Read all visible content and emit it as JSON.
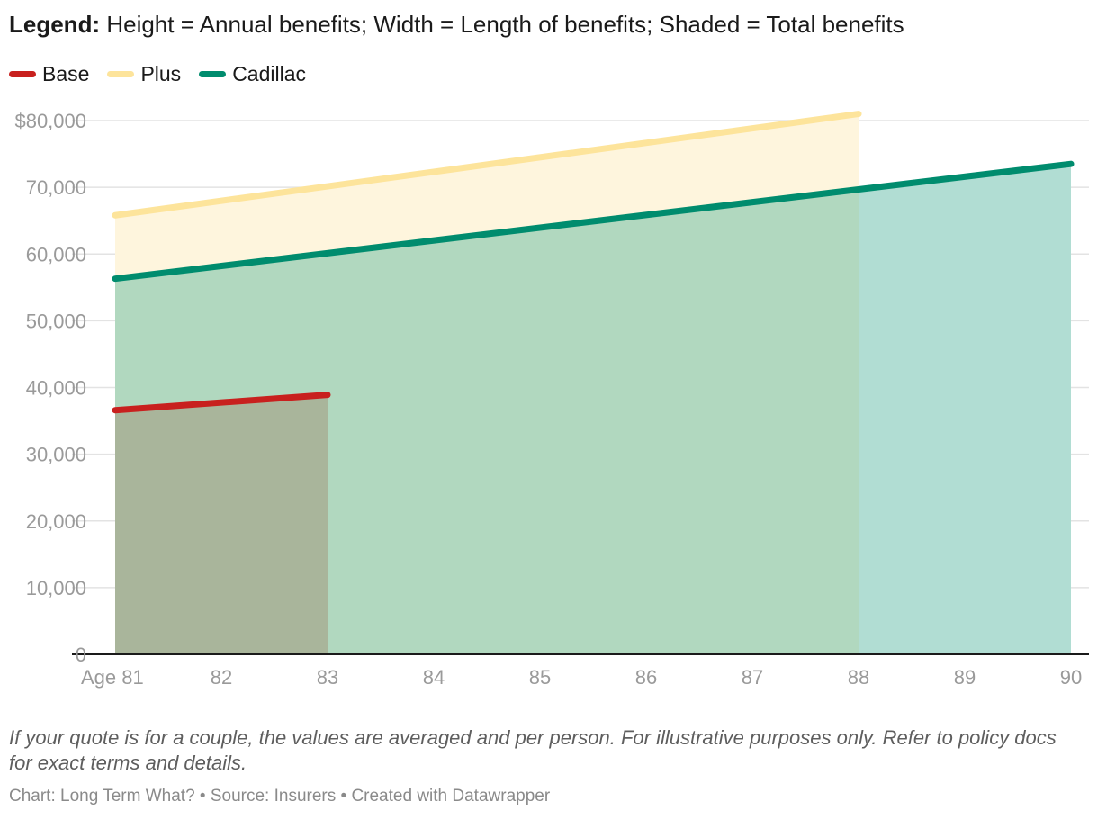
{
  "header": {
    "legend_bold": "Legend:",
    "legend_text": " Height = Annual benefits; Width = Length of benefits; Shaded = Total benefits"
  },
  "legend": [
    {
      "label": "Base",
      "color": "#c8201e"
    },
    {
      "label": "Plus",
      "color": "#fde49b"
    },
    {
      "label": "Cadillac",
      "color": "#008c6e"
    }
  ],
  "chart_data": {
    "type": "area",
    "x_ticks": [
      81,
      82,
      83,
      84,
      85,
      86,
      87,
      88,
      89,
      90
    ],
    "x_tick_labels": [
      "Age 81",
      "82",
      "83",
      "84",
      "85",
      "86",
      "87",
      "88",
      "89",
      "90"
    ],
    "y_ticks": [
      0,
      10000,
      20000,
      30000,
      40000,
      50000,
      60000,
      70000,
      80000
    ],
    "y_tick_labels": [
      "0",
      "10,000",
      "20,000",
      "30,000",
      "40,000",
      "50,000",
      "60,000",
      "70,000",
      "$80,000"
    ],
    "xlim": [
      81,
      90
    ],
    "ylim": [
      0,
      80000
    ],
    "grid": true,
    "series": [
      {
        "name": "Cadillac",
        "x": [
          81,
          90
        ],
        "y": [
          56300,
          73500
        ],
        "line_color": "#008c6e",
        "fill_color": "#b1ddd3"
      },
      {
        "name": "Plus",
        "x": [
          81,
          88
        ],
        "y": [
          65800,
          81000
        ],
        "line_color": "#fde49b",
        "fill_color": "#fef5dd"
      },
      {
        "name": "Base",
        "x": [
          81,
          83
        ],
        "y": [
          36600,
          38900
        ],
        "line_color": "#c8201e",
        "fill_color": "#a9b59b"
      }
    ],
    "overlap_fills": [
      {
        "of": [
          "Cadillac",
          "Plus"
        ],
        "color": "#b1d8bf"
      }
    ]
  },
  "footer": {
    "note": "If your quote is for a couple, the values are averaged and per person. For illustrative purposes only. Refer to policy docs for exact terms and details.",
    "credit": "Chart: Long Term What? • Source: Insurers • Created with Datawrapper"
  }
}
